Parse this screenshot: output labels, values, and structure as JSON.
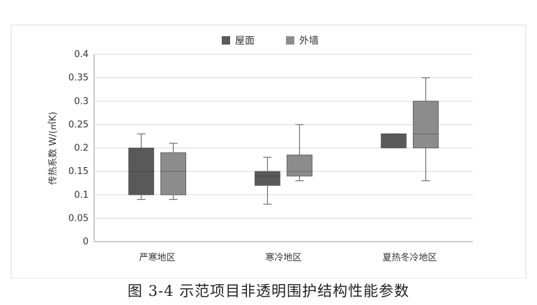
{
  "chart_data": {
    "type": "box",
    "ylabel": "传热系数 W/(㎡K)",
    "ylim": [
      0,
      0.4
    ],
    "yticks": [
      "0",
      "0.05",
      "0.1",
      "0.15",
      "0.2",
      "0.25",
      "0.3",
      "0.35",
      "0.4"
    ],
    "categories": [
      "严寒地区",
      "寒冷地区",
      "夏热冬冷地区"
    ],
    "grid": true,
    "legend_position": "top",
    "series": [
      {
        "name": "屋面",
        "color": "#595959",
        "boxes": [
          {
            "min": 0.09,
            "q1": 0.1,
            "median": 0.15,
            "q3": 0.2,
            "max": 0.23
          },
          {
            "min": 0.08,
            "q1": 0.12,
            "median": 0.14,
            "q3": 0.15,
            "max": 0.18
          },
          {
            "min": 0.2,
            "q1": 0.2,
            "median": 0.23,
            "q3": 0.23,
            "max": 0.23
          }
        ]
      },
      {
        "name": "外墙",
        "color": "#8c8c8c",
        "boxes": [
          {
            "min": 0.09,
            "q1": 0.1,
            "median": 0.15,
            "q3": 0.19,
            "max": 0.21
          },
          {
            "min": 0.13,
            "q1": 0.14,
            "median": 0.15,
            "q3": 0.185,
            "max": 0.25
          },
          {
            "min": 0.13,
            "q1": 0.2,
            "median": 0.23,
            "q3": 0.3,
            "max": 0.35
          }
        ]
      }
    ]
  },
  "caption": "图 3-4 示范项目非透明围护结构性能参数"
}
